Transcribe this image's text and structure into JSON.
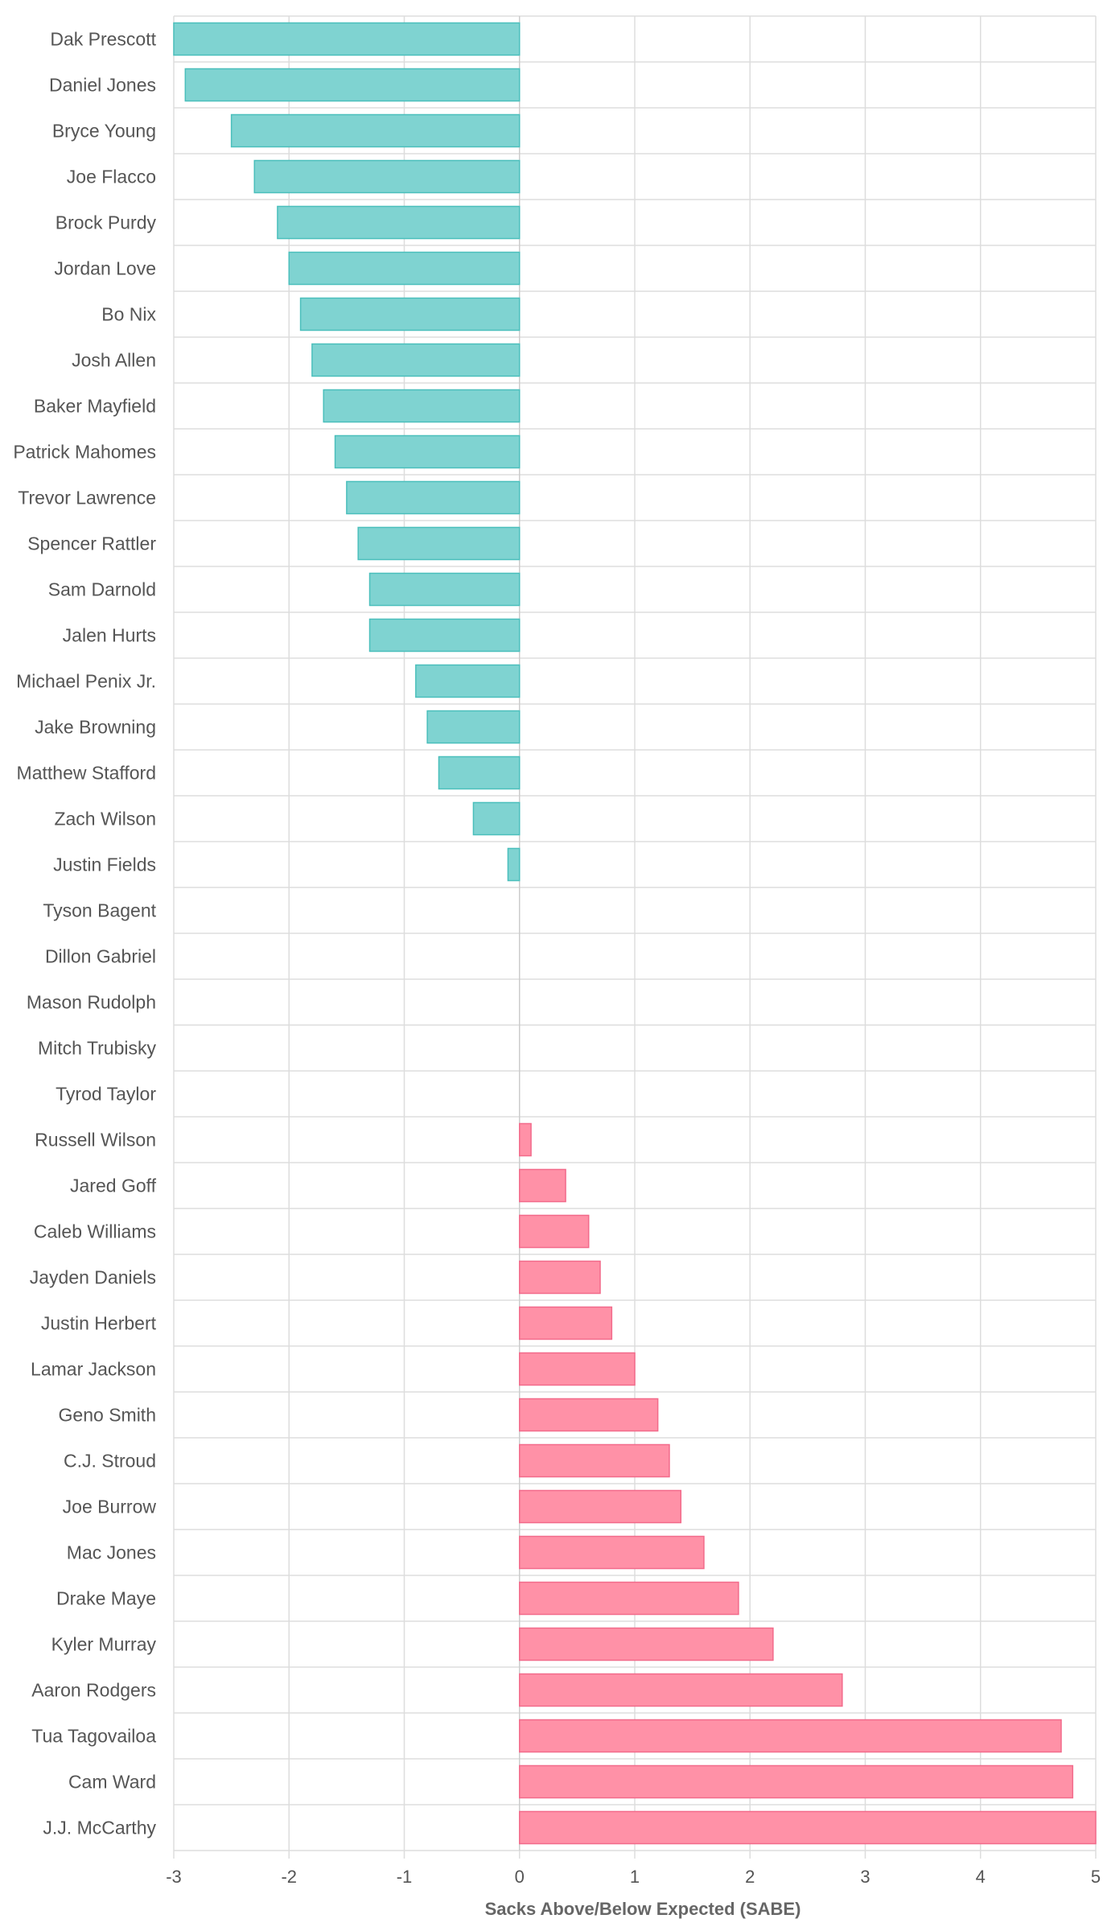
{
  "chart_data": {
    "type": "bar",
    "orientation": "horizontal",
    "title": "",
    "xlabel": "Sacks Above/Below Expected (SABE)",
    "ylabel": "",
    "xlim": [
      -3,
      5
    ],
    "xticks": [
      -3,
      -2,
      -1,
      0,
      1,
      2,
      3,
      4,
      5
    ],
    "grid": true,
    "legend": "none",
    "categories": [
      "Dak Prescott",
      "Daniel Jones",
      "Bryce Young",
      "Joe Flacco",
      "Brock Purdy",
      "Jordan Love",
      "Bo Nix",
      "Josh Allen",
      "Baker Mayfield",
      "Patrick Mahomes",
      "Trevor Lawrence",
      "Spencer Rattler",
      "Sam Darnold",
      "Jalen Hurts",
      "Michael Penix Jr.",
      "Jake Browning",
      "Matthew Stafford",
      "Zach Wilson",
      "Justin Fields",
      "Tyson Bagent",
      "Dillon Gabriel",
      "Mason Rudolph",
      "Mitch Trubisky",
      "Tyrod Taylor",
      "Russell Wilson",
      "Jared Goff",
      "Caleb Williams",
      "Jayden Daniels",
      "Justin Herbert",
      "Lamar Jackson",
      "Geno Smith",
      "C.J. Stroud",
      "Joe Burrow",
      "Mac Jones",
      "Drake Maye",
      "Kyler Murray",
      "Aaron Rodgers",
      "Tua Tagovailoa",
      "Cam Ward",
      "J.J. McCarthy"
    ],
    "values": [
      -3.0,
      -2.9,
      -2.5,
      -2.3,
      -2.1,
      -2.0,
      -1.9,
      -1.8,
      -1.7,
      -1.6,
      -1.5,
      -1.4,
      -1.3,
      -1.3,
      -0.9,
      -0.8,
      -0.7,
      -0.4,
      -0.1,
      0,
      0,
      0,
      0,
      0,
      0.1,
      0.4,
      0.6,
      0.7,
      0.8,
      1.0,
      1.2,
      1.3,
      1.4,
      1.6,
      1.9,
      2.2,
      2.8,
      4.7,
      4.8,
      5.0
    ],
    "colors": {
      "negative_fill": "#7fd3d1",
      "negative_stroke": "#4bbfbc",
      "positive_fill": "#ff91a7",
      "positive_stroke": "#f26b8b"
    }
  }
}
